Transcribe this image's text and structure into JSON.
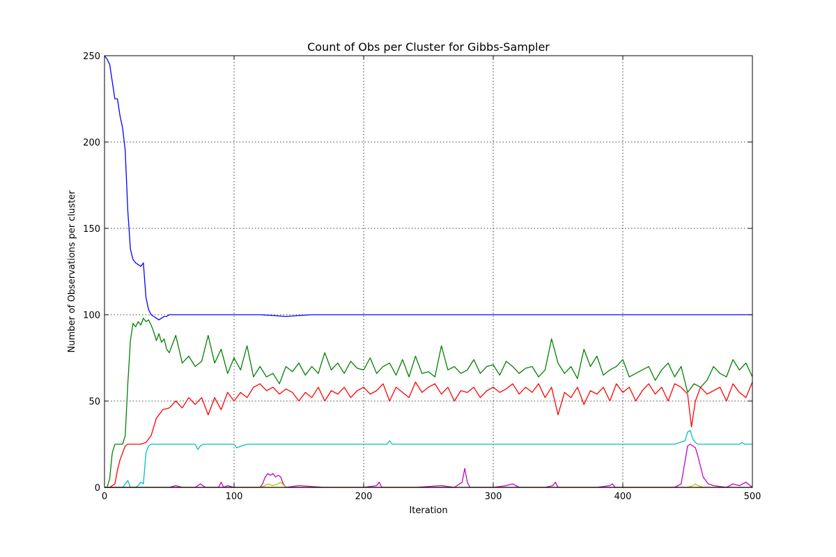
{
  "chart_data": {
    "type": "line",
    "title": "Count of Obs per Cluster for Gibbs-Sampler",
    "xlabel": "Iteration",
    "ylabel": "Number of Observations per cluster",
    "xlim": [
      0,
      500
    ],
    "ylim": [
      0,
      250
    ],
    "xticks": [
      0,
      100,
      200,
      300,
      400,
      500
    ],
    "yticks": [
      0,
      50,
      100,
      150,
      200,
      250
    ],
    "grid": true,
    "legend": "none",
    "series": [
      {
        "color": "#0000ff",
        "x": [
          0,
          2,
          4,
          6,
          8,
          10,
          12,
          14,
          16,
          18,
          20,
          22,
          24,
          26,
          28,
          30,
          32,
          34,
          36,
          38,
          40,
          42,
          44,
          46,
          48,
          50,
          60,
          80,
          100,
          120,
          140,
          160,
          180,
          200,
          220,
          240,
          260,
          280,
          300,
          320,
          340,
          360,
          380,
          400,
          420,
          440,
          460,
          480,
          500
        ],
        "y": [
          250,
          248,
          245,
          235,
          225,
          225,
          215,
          208,
          195,
          160,
          138,
          132,
          130,
          129,
          128,
          130,
          110,
          103,
          100,
          99,
          98,
          97,
          98,
          99,
          99,
          100,
          100,
          100,
          100,
          100,
          99,
          100,
          100,
          100,
          100,
          100,
          100,
          100,
          100,
          100,
          100,
          100,
          100,
          100,
          100,
          100,
          100,
          100,
          100
        ]
      },
      {
        "color": "#008000",
        "x": [
          0,
          2,
          4,
          6,
          8,
          10,
          12,
          14,
          16,
          18,
          20,
          22,
          24,
          26,
          28,
          30,
          32,
          34,
          36,
          38,
          40,
          42,
          44,
          46,
          48,
          50,
          55,
          60,
          65,
          70,
          75,
          80,
          85,
          90,
          95,
          100,
          105,
          110,
          115,
          120,
          125,
          130,
          135,
          140,
          145,
          150,
          155,
          160,
          165,
          170,
          175,
          180,
          185,
          190,
          195,
          200,
          205,
          210,
          215,
          220,
          225,
          230,
          235,
          240,
          245,
          250,
          255,
          260,
          265,
          270,
          275,
          280,
          285,
          290,
          295,
          300,
          305,
          310,
          315,
          320,
          325,
          330,
          335,
          340,
          345,
          350,
          355,
          360,
          365,
          370,
          375,
          380,
          385,
          390,
          395,
          400,
          405,
          410,
          415,
          420,
          425,
          430,
          435,
          440,
          445,
          450,
          455,
          460,
          465,
          470,
          475,
          480,
          485,
          490,
          495,
          500
        ],
        "y": [
          0,
          0,
          5,
          20,
          25,
          25,
          25,
          25,
          30,
          60,
          85,
          95,
          93,
          96,
          94,
          98,
          96,
          97,
          94,
          90,
          85,
          89,
          84,
          86,
          80,
          78,
          88,
          72,
          76,
          70,
          73,
          88,
          72,
          80,
          66,
          75,
          68,
          82,
          64,
          70,
          64,
          66,
          60,
          70,
          67,
          72,
          65,
          70,
          66,
          78,
          68,
          72,
          66,
          73,
          69,
          68,
          75,
          66,
          70,
          72,
          65,
          74,
          64,
          76,
          66,
          67,
          64,
          82,
          68,
          70,
          66,
          68,
          74,
          66,
          70,
          71,
          65,
          73,
          70,
          66,
          69,
          70,
          64,
          68,
          86,
          72,
          66,
          70,
          63,
          80,
          70,
          76,
          65,
          68,
          70,
          74,
          64,
          66,
          68,
          70,
          62,
          68,
          72,
          64,
          70,
          55,
          60,
          58,
          62,
          70,
          66,
          64,
          74,
          68,
          72,
          64
        ]
      },
      {
        "color": "#ff0000",
        "x": [
          0,
          4,
          8,
          10,
          12,
          14,
          16,
          18,
          20,
          24,
          28,
          32,
          36,
          40,
          45,
          50,
          55,
          60,
          65,
          70,
          75,
          80,
          85,
          90,
          95,
          100,
          105,
          110,
          115,
          120,
          125,
          130,
          135,
          140,
          145,
          150,
          155,
          160,
          165,
          170,
          175,
          180,
          185,
          190,
          195,
          200,
          205,
          210,
          215,
          220,
          225,
          230,
          235,
          240,
          245,
          250,
          255,
          260,
          265,
          270,
          275,
          280,
          285,
          290,
          295,
          300,
          305,
          310,
          315,
          320,
          325,
          330,
          335,
          340,
          345,
          350,
          355,
          360,
          365,
          370,
          375,
          380,
          385,
          390,
          395,
          400,
          405,
          410,
          415,
          420,
          425,
          430,
          435,
          440,
          445,
          450,
          453,
          456,
          460,
          465,
          470,
          475,
          480,
          485,
          490,
          495,
          500
        ],
        "y": [
          0,
          0,
          2,
          10,
          16,
          20,
          24,
          25,
          25,
          25,
          25,
          26,
          30,
          40,
          45,
          46,
          50,
          46,
          52,
          48,
          52,
          42,
          52,
          45,
          55,
          50,
          55,
          52,
          58,
          60,
          56,
          58,
          54,
          57,
          55,
          50,
          55,
          52,
          58,
          50,
          56,
          54,
          58,
          52,
          56,
          58,
          54,
          56,
          60,
          50,
          58,
          55,
          52,
          61,
          55,
          58,
          60,
          54,
          58,
          50,
          56,
          55,
          58,
          52,
          56,
          58,
          55,
          57,
          60,
          54,
          58,
          55,
          60,
          52,
          58,
          42,
          55,
          52,
          58,
          48,
          56,
          54,
          58,
          50,
          60,
          55,
          58,
          50,
          56,
          60,
          54,
          58,
          50,
          60,
          58,
          54,
          35,
          50,
          58,
          54,
          56,
          58,
          50,
          60,
          55,
          52,
          61
        ]
      },
      {
        "color": "#00bfbf",
        "x": [
          0,
          10,
          14,
          16,
          18,
          20,
          24,
          26,
          28,
          30,
          32,
          34,
          36,
          40,
          50,
          60,
          70,
          72,
          74,
          76,
          80,
          100,
          102,
          110,
          200,
          218,
          220,
          222,
          240,
          300,
          400,
          440,
          448,
          450,
          452,
          454,
          456,
          458,
          460,
          470,
          490,
          492,
          494,
          500
        ],
        "y": [
          0,
          0,
          0,
          2,
          4,
          0,
          0,
          1,
          3,
          2,
          20,
          24,
          25,
          25,
          25,
          25,
          25,
          22,
          24,
          25,
          25,
          25,
          23,
          25,
          25,
          25,
          27,
          25,
          25,
          25,
          25,
          25,
          27,
          32,
          33,
          28,
          26,
          25,
          25,
          25,
          25,
          26,
          25,
          25
        ]
      },
      {
        "color": "#bf00bf",
        "x": [
          0,
          50,
          55,
          60,
          70,
          74,
          78,
          88,
          90,
          92,
          95,
          100,
          110,
          120,
          122,
          124,
          126,
          128,
          130,
          132,
          134,
          136,
          138,
          140,
          150,
          170,
          200,
          210,
          212,
          214,
          220,
          240,
          260,
          270,
          276,
          278,
          280,
          282,
          290,
          300,
          310,
          315,
          320,
          340,
          346,
          348,
          350,
          380,
          390,
          392,
          394,
          400,
          430,
          440,
          445,
          448,
          450,
          452,
          454,
          456,
          458,
          460,
          462,
          464,
          466,
          470,
          480,
          485,
          490,
          495,
          500
        ],
        "y": [
          0,
          0,
          1,
          0,
          0,
          2,
          0,
          0,
          3,
          0,
          1,
          0,
          0,
          0,
          2,
          6,
          8,
          7,
          8,
          6,
          7,
          6,
          2,
          0,
          1,
          0,
          0,
          1,
          3,
          0,
          0,
          0,
          1,
          0,
          3,
          11,
          3,
          0,
          0,
          0,
          1,
          2,
          0,
          0,
          1,
          3,
          0,
          0,
          1,
          2,
          0,
          0,
          0,
          0,
          2,
          15,
          24,
          25,
          24,
          23,
          18,
          12,
          6,
          4,
          2,
          1,
          0,
          2,
          1,
          3,
          0
        ]
      },
      {
        "color": "#bfbf00",
        "x": [
          0,
          120,
          124,
          126,
          130,
          134,
          136,
          140,
          450,
          454,
          456,
          458,
          462,
          500
        ],
        "y": [
          0,
          0,
          1,
          2,
          1,
          2,
          3,
          0,
          0,
          1,
          2,
          1,
          0,
          0
        ]
      },
      {
        "color": "#000000",
        "x": [
          0,
          500
        ],
        "y": [
          0,
          0
        ]
      }
    ]
  }
}
